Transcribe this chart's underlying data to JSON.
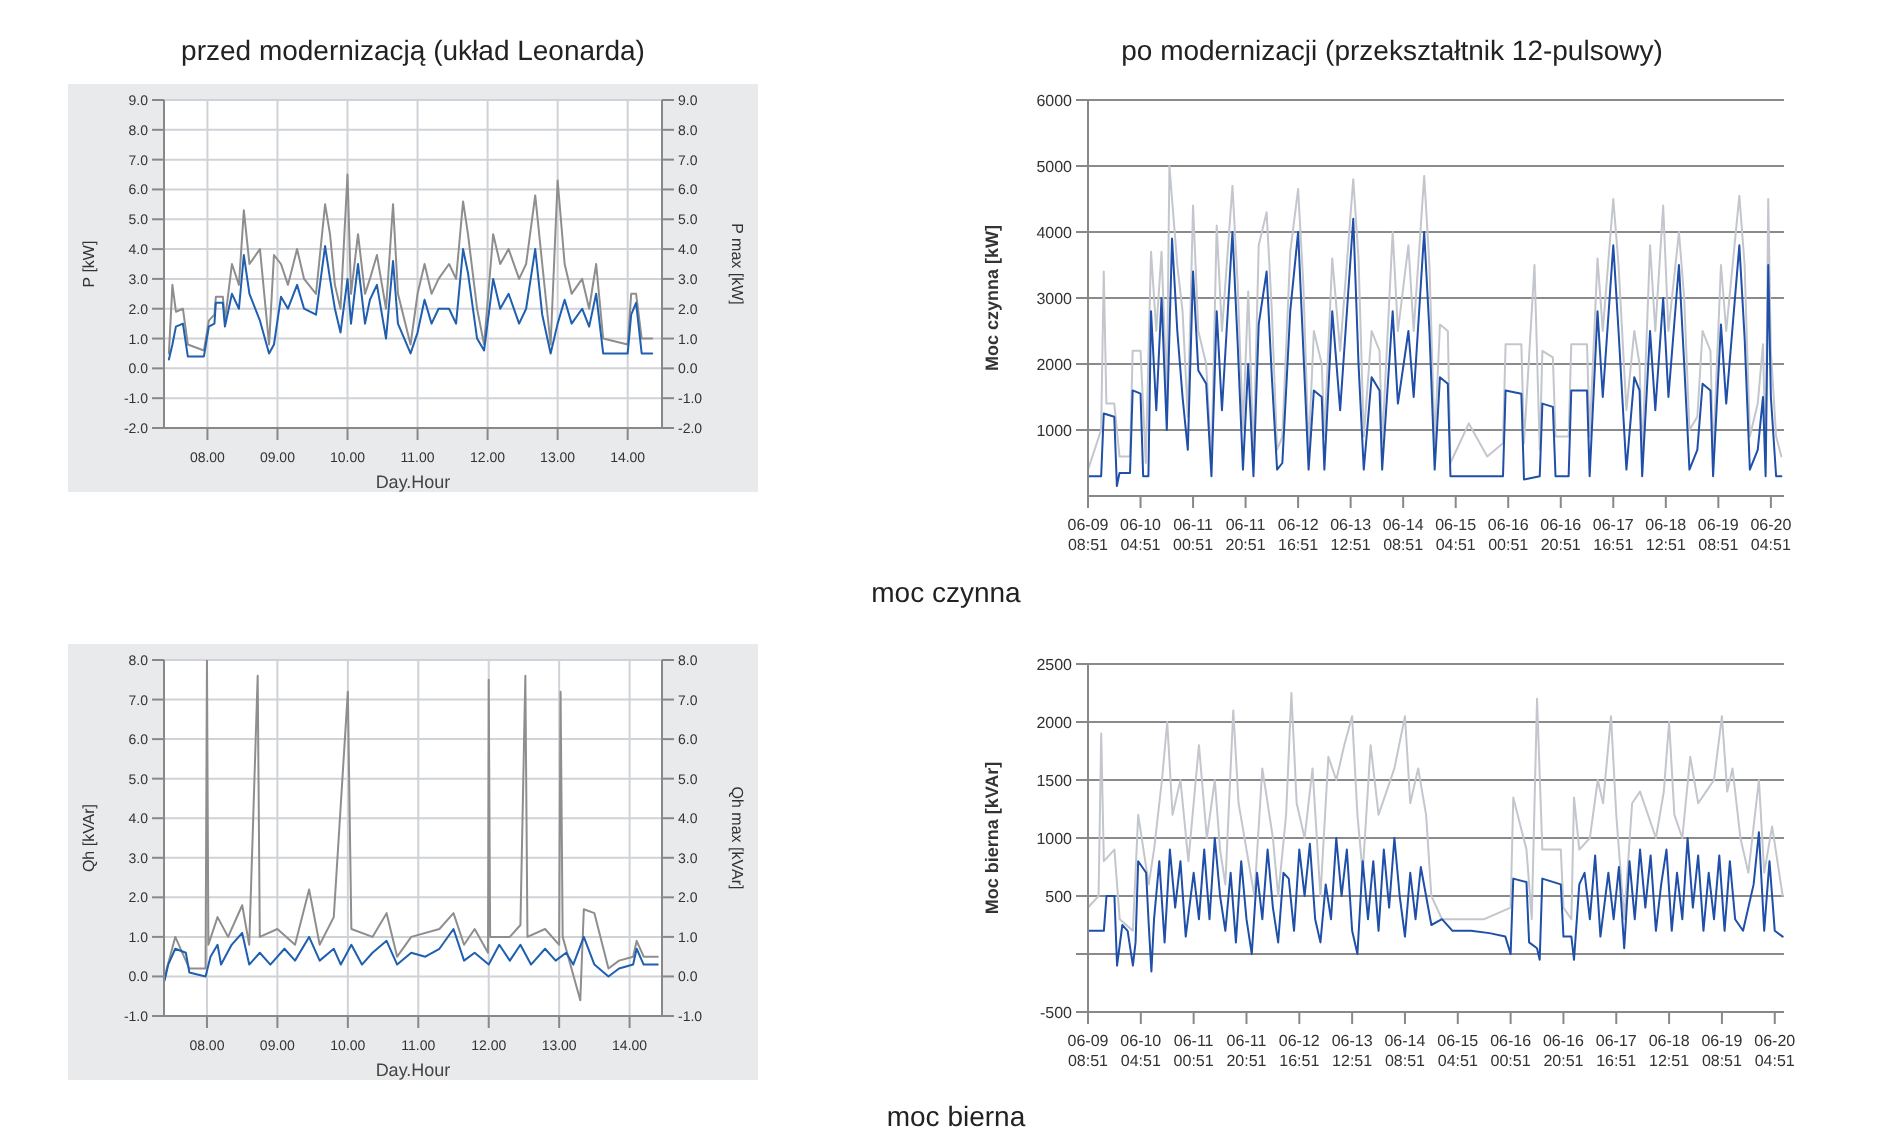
{
  "chart_data": [
    {
      "type": "line",
      "title": "przed modernizacją (układ Leonarda)",
      "xlabel": "Day.Hour",
      "ylabel": "P [kW]",
      "y2label": "P max [kW]",
      "annotations": [
        "moc czynna"
      ],
      "grid": true,
      "xlim": [
        7.38,
        14.49
      ],
      "xticks": [
        {
          "value": 8,
          "label": "08.00"
        },
        {
          "value": 9,
          "label": "09.00"
        },
        {
          "value": 10,
          "label": "10.00"
        },
        {
          "value": 11,
          "label": "11.00"
        },
        {
          "value": 12,
          "label": "12.00"
        },
        {
          "value": 13,
          "label": "13.00"
        },
        {
          "value": 14,
          "label": "14.00"
        }
      ],
      "ylim": [
        -2,
        9
      ],
      "yticks": [
        {
          "value": -2,
          "label": "-2.0"
        },
        {
          "value": -1,
          "label": "-1.0"
        },
        {
          "value": 0,
          "label": "0.0"
        },
        {
          "value": 1,
          "label": "1.0"
        },
        {
          "value": 2,
          "label": "2.0"
        },
        {
          "value": 3,
          "label": "3.0"
        },
        {
          "value": 4,
          "label": "4.0"
        },
        {
          "value": 5,
          "label": "5.0"
        },
        {
          "value": 6,
          "label": "6.0"
        },
        {
          "value": 7,
          "label": "7.0"
        },
        {
          "value": 8,
          "label": "8.0"
        },
        {
          "value": 9,
          "label": "9.0"
        }
      ],
      "y2lim": [
        -2,
        9
      ],
      "y2ticks": [
        {
          "value": -2,
          "label": "-2.0"
        },
        {
          "value": -1,
          "label": "-1.0"
        },
        {
          "value": 0,
          "label": "0.0"
        },
        {
          "value": 1,
          "label": "1.0"
        },
        {
          "value": 2,
          "label": "2.0"
        },
        {
          "value": 3,
          "label": "3.0"
        },
        {
          "value": 4,
          "label": "4.0"
        },
        {
          "value": 5,
          "label": "5.0"
        },
        {
          "value": 6,
          "label": "6.0"
        },
        {
          "value": 7,
          "label": "7.0"
        },
        {
          "value": 8,
          "label": "8.0"
        },
        {
          "value": 9,
          "label": "9.0"
        }
      ],
      "x": [
        7.45,
        7.5,
        7.55,
        7.65,
        7.72,
        7.95,
        8.02,
        8.1,
        8.12,
        8.22,
        8.25,
        8.35,
        8.45,
        8.52,
        8.6,
        8.75,
        8.88,
        8.95,
        9.05,
        9.15,
        9.28,
        9.38,
        9.55,
        9.68,
        9.75,
        9.82,
        9.9,
        10.0,
        10.05,
        10.15,
        10.25,
        10.32,
        10.42,
        10.55,
        10.65,
        10.72,
        10.9,
        11.0,
        11.1,
        11.2,
        11.3,
        11.45,
        11.55,
        11.65,
        11.72,
        11.85,
        11.95,
        12.08,
        12.18,
        12.3,
        12.45,
        12.55,
        12.68,
        12.78,
        12.9,
        13.0,
        13.1,
        13.2,
        13.35,
        13.45,
        13.55,
        13.65,
        14.0,
        14.05,
        14.12,
        14.2,
        14.35
      ],
      "series": [
        {
          "color": "#8e8e8e",
          "values": [
            0.5,
            2.8,
            1.9,
            2.0,
            0.8,
            0.6,
            1.6,
            1.8,
            2.4,
            2.4,
            1.6,
            3.5,
            2.8,
            5.3,
            3.5,
            4.0,
            0.8,
            3.8,
            3.5,
            2.8,
            4.0,
            3.0,
            2.5,
            5.5,
            4.5,
            2.8,
            2.0,
            6.5,
            2.5,
            4.5,
            2.5,
            3.0,
            3.8,
            2.0,
            5.5,
            2.5,
            0.8,
            2.5,
            3.5,
            2.5,
            3.0,
            3.5,
            3.0,
            5.6,
            4.5,
            2.0,
            0.8,
            4.5,
            3.5,
            4.0,
            3.0,
            3.5,
            5.8,
            3.5,
            0.8,
            6.3,
            3.5,
            2.5,
            3.0,
            2.0,
            3.5,
            1.0,
            0.8,
            2.5,
            2.5,
            1.0,
            1.0
          ]
        },
        {
          "color": "#1f5fb0",
          "values": [
            0.3,
            0.8,
            1.4,
            1.5,
            0.4,
            0.4,
            1.4,
            1.5,
            2.2,
            2.2,
            1.4,
            2.5,
            2.0,
            3.8,
            2.5,
            1.6,
            0.5,
            0.8,
            2.4,
            2.0,
            2.8,
            2.0,
            1.8,
            4.1,
            3.0,
            2.0,
            1.2,
            3.0,
            1.5,
            3.5,
            1.5,
            2.3,
            2.8,
            1.0,
            3.6,
            1.5,
            0.5,
            1.2,
            2.3,
            1.5,
            2.0,
            2.0,
            1.5,
            4.0,
            3.2,
            1.0,
            0.6,
            3.0,
            2.0,
            2.5,
            1.5,
            2.0,
            4.0,
            1.8,
            0.5,
            1.5,
            2.3,
            1.5,
            2.0,
            1.4,
            2.5,
            0.5,
            0.5,
            1.8,
            2.2,
            0.5,
            0.5
          ]
        }
      ]
    },
    {
      "type": "line",
      "title": "po modernizacji (przekształtnik 12-pulsowy)",
      "ylabel": "Moc czynna [kW]",
      "grid": "y",
      "xlim": [
        "--06-09T08:51",
        "--06-20T09:51"
      ],
      "xticks": [
        {
          "value": "--06-09T08:51",
          "label": "06-09 08:51"
        },
        {
          "value": "--06-10T04:51",
          "label": "06-10 04:51"
        },
        {
          "value": "--06-11T00:51",
          "label": "06-11 00:51"
        },
        {
          "value": "--06-11T20:51",
          "label": "06-11 20:51"
        },
        {
          "value": "--06-12T16:51",
          "label": "06-12 16:51"
        },
        {
          "value": "--06-13T12:51",
          "label": "06-13 12:51"
        },
        {
          "value": "--06-14T08:51",
          "label": "06-14 08:51"
        },
        {
          "value": "--06-15T04:51",
          "label": "06-15 04:51"
        },
        {
          "value": "--06-16T00:51",
          "label": "06-16 00:51"
        },
        {
          "value": "--06-16T20:51",
          "label": "06-16 20:51"
        },
        {
          "value": "--06-17T16:51",
          "label": "06-17 16:51"
        },
        {
          "value": "--06-18T12:51",
          "label": "06-18 12:51"
        },
        {
          "value": "--06-19T08:51",
          "label": "06-19 08:51"
        },
        {
          "value": "--06-20T04:51",
          "label": "06-20 04:51"
        }
      ],
      "ylim": [
        0,
        6000
      ],
      "yticks": [
        1000,
        2000,
        3000,
        4000,
        5000,
        6000
      ],
      "series": [
        {
          "color": "#c3c6cc",
          "x": [
            "--06-09T08:51",
            "--06-09T13:51",
            "--06-09T14:51",
            "--06-09T15:51",
            "--06-09T18:51",
            "--06-09T20:51",
            "--06-10T00:51",
            "--06-10T01:51",
            "--06-10T04:51",
            "--06-10T06:51",
            "--06-10T08:51",
            "--06-10T10:51",
            "--06-10T12:51",
            "--06-10T14:51",
            "--06-10T15:51",
            "--06-10T18:51",
            "--06-10T20:51",
            "--06-10T22:51",
            "--06-11T00:51",
            "--06-11T02:51",
            "--06-11T05:51",
            "--06-11T07:51",
            "--06-11T09:51",
            "--06-11T11:51",
            "--06-11T15:51",
            "--06-11T17:51",
            "--06-11T19:51",
            "--06-11T21:51",
            "--06-11T23:51",
            "--06-12T01:51",
            "--06-12T04:51",
            "--06-12T06:51",
            "--06-12T08:51",
            "--06-12T10:51",
            "--06-12T13:51",
            "--06-12T16:51",
            "--06-12T18:51",
            "--06-12T20:51",
            "--06-12T22:51",
            "--06-13T01:51",
            "--06-13T02:51",
            "--06-13T05:51",
            "--06-13T08:51",
            "--06-13T13:51",
            "--06-13T15:51",
            "--06-13T17:51",
            "--06-13T20:51",
            "--06-13T23:51",
            "--06-14T00:51",
            "--06-14T04:51",
            "--06-14T06:51",
            "--06-14T10:51",
            "--06-14T12:51",
            "--06-14T16:51",
            "--06-14T18:51",
            "--06-14T20:51",
            "--06-14T22:51",
            "--06-15T01:51",
            "--06-15T02:51",
            "--06-15T09:51",
            "--06-15T16:51",
            "--06-15T22:51",
            "--06-15T23:51",
            "--06-16T05:51",
            "--06-16T06:51",
            "--06-16T10:51",
            "--06-16T12:51",
            "--06-16T13:51",
            "--06-16T17:51",
            "--06-16T18:51",
            "--06-16T23:51",
            "--06-17T00:51",
            "--06-17T06:51",
            "--06-17T07:51",
            "--06-17T10:51",
            "--06-17T12:51",
            "--06-17T16:51",
            "--06-17T18:51",
            "--06-17T21:51",
            "--06-18T00:51",
            "--06-18T02:51",
            "--06-18T03:51",
            "--06-18T06:51",
            "--06-18T08:51",
            "--06-18T11:51",
            "--06-18T13:51",
            "--06-18T17:51",
            "--06-18T19:51",
            "--06-18T21:51",
            "--06-19T00:51",
            "--06-19T02:51",
            "--06-19T05:51",
            "--06-19T06:51",
            "--06-19T09:51",
            "--06-19T11:51",
            "--06-19T16:51",
            "--06-19T18:51",
            "--06-19T20:51",
            "--06-19T23:51",
            "--06-20T01:51",
            "--06-20T02:51",
            "--06-20T03:51",
            "--06-20T04:51",
            "--06-20T06:51",
            "--06-20T08:51"
          ],
          "values": [
            400,
            1000,
            3400,
            1400,
            1400,
            600,
            600,
            2200,
            2200,
            500,
            3700,
            2500,
            3700,
            1500,
            5000,
            3500,
            2800,
            1200,
            4400,
            2500,
            2000,
            500,
            4100,
            2500,
            4700,
            3200,
            1000,
            3100,
            600,
            3800,
            4300,
            2800,
            700,
            900,
            3700,
            4650,
            3200,
            700,
            2500,
            2000,
            900,
            3600,
            2200,
            4800,
            3600,
            900,
            2500,
            2200,
            800,
            4000,
            2500,
            3800,
            2500,
            4850,
            3500,
            800,
            2600,
            2500,
            500,
            1100,
            600,
            800,
            2300,
            2300,
            800,
            3500,
            700,
            2200,
            2100,
            900,
            900,
            2300,
            2300,
            900,
            3600,
            2500,
            4500,
            3500,
            1300,
            2500,
            2000,
            600,
            3800,
            2500,
            4400,
            2500,
            4000,
            3000,
            1000,
            1200,
            2500,
            2200,
            600,
            3500,
            2500,
            4550,
            3500,
            900,
            1400,
            2300,
            600,
            4500,
            2200,
            900,
            600
          ]
        },
        {
          "color": "#1f4fa8",
          "x": [
            "--06-09T08:51",
            "--06-09T13:51",
            "--06-09T14:51",
            "--06-09T18:51",
            "--06-09T19:51",
            "--06-09T20:51",
            "--06-10T00:51",
            "--06-10T01:51",
            "--06-10T04:51",
            "--06-10T05:51",
            "--06-10T07:51",
            "--06-10T08:51",
            "--06-10T10:51",
            "--06-10T12:51",
            "--06-10T14:51",
            "--06-10T16:51",
            "--06-10T18:51",
            "--06-10T20:51",
            "--06-10T22:51",
            "--06-11T00:51",
            "--06-11T02:51",
            "--06-11T05:51",
            "--06-11T07:51",
            "--06-11T09:51",
            "--06-11T11:51",
            "--06-11T15:51",
            "--06-11T17:51",
            "--06-11T19:51",
            "--06-11T21:51",
            "--06-11T23:51",
            "--06-12T01:51",
            "--06-12T04:51",
            "--06-12T06:51",
            "--06-12T08:51",
            "--06-12T10:51",
            "--06-12T13:51",
            "--06-12T16:51",
            "--06-12T18:51",
            "--06-12T20:51",
            "--06-12T22:51",
            "--06-13T01:51",
            "--06-13T02:51",
            "--06-13T05:51",
            "--06-13T08:51",
            "--06-13T13:51",
            "--06-13T15:51",
            "--06-13T17:51",
            "--06-13T20:51",
            "--06-13T23:51",
            "--06-14T00:51",
            "--06-14T04:51",
            "--06-14T06:51",
            "--06-14T10:51",
            "--06-14T12:51",
            "--06-14T16:51",
            "--06-14T18:51",
            "--06-14T20:51",
            "--06-14T22:51",
            "--06-15T01:51",
            "--06-15T02:51",
            "--06-15T22:51",
            "--06-15T23:51",
            "--06-16T05:51",
            "--06-16T06:51",
            "--06-16T12:51",
            "--06-16T13:51",
            "--06-16T17:51",
            "--06-16T18:51",
            "--06-16T23:51",
            "--06-17T00:51",
            "--06-17T06:51",
            "--06-17T07:51",
            "--06-17T10:51",
            "--06-17T12:51",
            "--06-17T16:51",
            "--06-17T18:51",
            "--06-17T21:51",
            "--06-18T00:51",
            "--06-18T02:51",
            "--06-18T03:51",
            "--06-18T06:51",
            "--06-18T08:51",
            "--06-18T11:51",
            "--06-18T13:51",
            "--06-18T17:51",
            "--06-18T19:51",
            "--06-18T21:51",
            "--06-19T00:51",
            "--06-19T02:51",
            "--06-19T05:51",
            "--06-19T06:51",
            "--06-19T09:51",
            "--06-19T11:51",
            "--06-19T16:51",
            "--06-19T18:51",
            "--06-19T20:51",
            "--06-19T23:51",
            "--06-20T01:51",
            "--06-20T02:51",
            "--06-20T03:51",
            "--06-20T04:51",
            "--06-20T06:51",
            "--06-20T08:51"
          ],
          "values": [
            300,
            300,
            1250,
            1200,
            150,
            350,
            350,
            1600,
            1550,
            300,
            300,
            2800,
            1300,
            3000,
            1000,
            3900,
            2500,
            1500,
            700,
            3400,
            1900,
            1700,
            300,
            2800,
            1300,
            4000,
            2300,
            400,
            2000,
            300,
            2600,
            3400,
            1800,
            400,
            500,
            2800,
            4000,
            2200,
            400,
            1600,
            1500,
            400,
            2800,
            1300,
            4200,
            2000,
            400,
            1800,
            1600,
            400,
            2800,
            1400,
            2500,
            1500,
            4000,
            2500,
            400,
            1800,
            1700,
            300,
            300,
            1600,
            1550,
            250,
            300,
            1400,
            1350,
            300,
            300,
            1600,
            1600,
            300,
            2800,
            1500,
            3800,
            2500,
            400,
            1800,
            1600,
            300,
            2500,
            1300,
            3000,
            1500,
            3500,
            2000,
            400,
            700,
            1700,
            1600,
            300,
            2600,
            1400,
            3800,
            2400,
            400,
            700,
            1500,
            300,
            3500,
            1500,
            300,
            300
          ]
        }
      ]
    },
    {
      "type": "line",
      "xlabel": "Day.Hour",
      "ylabel": "Qh [kVAr]",
      "y2label": "Qh max [kVAr]",
      "annotations": [
        "moc bierna"
      ],
      "grid": true,
      "xlim": [
        7.39,
        14.46
      ],
      "xticks": [
        {
          "value": 8,
          "label": "08.00"
        },
        {
          "value": 9,
          "label": "09.00"
        },
        {
          "value": 10,
          "label": "10.00"
        },
        {
          "value": 11,
          "label": "11.00"
        },
        {
          "value": 12,
          "label": "12.00"
        },
        {
          "value": 13,
          "label": "13.00"
        },
        {
          "value": 14,
          "label": "14.00"
        }
      ],
      "ylim": [
        -1,
        8
      ],
      "yticks": [
        {
          "value": -1,
          "label": "-1.0"
        },
        {
          "value": 0,
          "label": "0.0"
        },
        {
          "value": 1,
          "label": "1.0"
        },
        {
          "value": 2,
          "label": "2.0"
        },
        {
          "value": 3,
          "label": "3.0"
        },
        {
          "value": 4,
          "label": "4.0"
        },
        {
          "value": 5,
          "label": "5.0"
        },
        {
          "value": 6,
          "label": "6.0"
        },
        {
          "value": 7,
          "label": "7.0"
        },
        {
          "value": 8,
          "label": "8.0"
        }
      ],
      "y2lim": [
        -1,
        8
      ],
      "y2ticks": [
        {
          "value": -1,
          "label": "-1.0"
        },
        {
          "value": 0,
          "label": "0.0"
        },
        {
          "value": 1,
          "label": "1.0"
        },
        {
          "value": 2,
          "label": "2.0"
        },
        {
          "value": 3,
          "label": "3.0"
        },
        {
          "value": 4,
          "label": "4.0"
        },
        {
          "value": 5,
          "label": "5.0"
        },
        {
          "value": 6,
          "label": "6.0"
        },
        {
          "value": 7,
          "label": "7.0"
        },
        {
          "value": 8,
          "label": "8.0"
        }
      ],
      "series": [
        {
          "color": "#8e8e8e",
          "x": [
            7.4,
            7.55,
            7.75,
            7.98,
            8.0,
            8.02,
            8.15,
            8.3,
            8.5,
            8.6,
            8.72,
            8.75,
            9.0,
            9.25,
            9.45,
            9.6,
            9.8,
            10.0,
            10.05,
            10.35,
            10.55,
            10.7,
            10.9,
            11.3,
            11.5,
            11.65,
            11.8,
            11.99,
            12.0,
            12.02,
            12.3,
            12.45,
            12.52,
            12.55,
            12.8,
            13.0,
            13.02,
            13.05,
            13.3,
            13.35,
            13.5,
            13.7,
            13.85,
            14.05,
            14.1,
            14.2,
            14.4
          ],
          "values": [
            0.0,
            1.0,
            0.2,
            0.2,
            8.0,
            0.8,
            1.5,
            1.0,
            1.8,
            0.8,
            7.6,
            1.0,
            1.2,
            0.8,
            2.2,
            0.8,
            1.5,
            7.2,
            1.2,
            1.0,
            1.6,
            0.5,
            1.0,
            1.2,
            1.6,
            0.8,
            1.2,
            0.6,
            7.5,
            1.0,
            1.0,
            1.3,
            7.6,
            1.0,
            1.2,
            0.8,
            7.2,
            1.0,
            -0.6,
            1.7,
            1.6,
            0.2,
            0.4,
            0.5,
            0.9,
            0.5,
            0.5
          ]
        },
        {
          "color": "#1f5fb0",
          "x": [
            7.4,
            7.45,
            7.55,
            7.7,
            7.75,
            7.98,
            8.05,
            8.15,
            8.2,
            8.35,
            8.5,
            8.6,
            8.75,
            8.9,
            9.1,
            9.25,
            9.45,
            9.6,
            9.8,
            9.9,
            10.05,
            10.2,
            10.35,
            10.55,
            10.7,
            10.9,
            11.1,
            11.3,
            11.5,
            11.65,
            11.8,
            12.0,
            12.15,
            12.3,
            12.45,
            12.6,
            12.8,
            12.95,
            13.1,
            13.2,
            13.35,
            13.5,
            13.7,
            13.85,
            14.05,
            14.1,
            14.2,
            14.4
          ],
          "values": [
            -0.1,
            0.3,
            0.7,
            0.6,
            0.1,
            0.0,
            0.5,
            0.8,
            0.3,
            0.8,
            1.1,
            0.3,
            0.6,
            0.3,
            0.7,
            0.4,
            1.0,
            0.4,
            0.7,
            0.3,
            0.8,
            0.3,
            0.6,
            0.9,
            0.3,
            0.6,
            0.5,
            0.7,
            1.2,
            0.4,
            0.6,
            0.3,
            0.8,
            0.4,
            0.8,
            0.3,
            0.7,
            0.4,
            0.6,
            0.3,
            1.0,
            0.3,
            0.0,
            0.2,
            0.3,
            0.7,
            0.3,
            0.3
          ]
        }
      ]
    },
    {
      "type": "line",
      "ylabel": "Moc bierna [kVAr]",
      "grid": "y",
      "xlim": [
        "--06-09T08:51",
        "--06-20T08:21"
      ],
      "xticks": [
        {
          "value": "--06-09T08:51",
          "label": "06-09 08:51"
        },
        {
          "value": "--06-10T04:51",
          "label": "06-10 04:51"
        },
        {
          "value": "--06-11T00:51",
          "label": "06-11 00:51"
        },
        {
          "value": "--06-11T20:51",
          "label": "06-11 20:51"
        },
        {
          "value": "--06-12T16:51",
          "label": "06-12 16:51"
        },
        {
          "value": "--06-13T12:51",
          "label": "06-13 12:51"
        },
        {
          "value": "--06-14T08:51",
          "label": "06-14 08:51"
        },
        {
          "value": "--06-15T04:51",
          "label": "06-15 04:51"
        },
        {
          "value": "--06-16T00:51",
          "label": "06-16 00:51"
        },
        {
          "value": "--06-16T20:51",
          "label": "06-16 20:51"
        },
        {
          "value": "--06-17T16:51",
          "label": "06-17 16:51"
        },
        {
          "value": "--06-18T12:51",
          "label": "06-18 12:51"
        },
        {
          "value": "--06-19T08:51",
          "label": "06-19 08:51"
        },
        {
          "value": "--06-20T04:51",
          "label": "06-20 04:51"
        }
      ],
      "ylim": [
        -500,
        2500
      ],
      "yticks": [
        -500,
        {
          "value": 0,
          "label": null
        },
        500,
        1000,
        1500,
        2000,
        2500
      ],
      "series": [
        {
          "color": "#c3c6cc",
          "x": [
            "--06-09T08:51",
            "--06-09T12:51",
            "--06-09T13:51",
            "--06-09T14:51",
            "--06-09T18:51",
            "--06-09T20:51",
            "--06-10T01:51",
            "--06-10T03:51",
            "--06-10T07:51",
            "--06-10T09:51",
            "--06-10T12:51",
            "--06-10T14:51",
            "--06-10T16:51",
            "--06-10T19:51",
            "--06-10T22:51",
            "--06-11T02:51",
            "--06-11T05:51",
            "--06-11T08:51",
            "--06-11T10:51",
            "--06-11T12:51",
            "--06-11T15:51",
            "--06-11T17:51",
            "--06-11T20:51",
            "--06-11T23:51",
            "--06-12T02:51",
            "--06-12T06:51",
            "--06-12T08:51",
            "--06-12T11:51",
            "--06-12T13:51",
            "--06-12T15:51",
            "--06-12T18:51",
            "--06-12T21:51",
            "--06-13T00:51",
            "--06-13T03:51",
            "--06-13T06:51",
            "--06-13T09:51",
            "--06-13T12:51",
            "--06-13T14:51",
            "--06-13T16:51",
            "--06-13T19:51",
            "--06-13T22:51",
            "--06-14T01:51",
            "--06-14T04:51",
            "--06-14T08:51",
            "--06-14T10:51",
            "--06-14T13:51",
            "--06-14T16:51",
            "--06-14T18:51",
            "--06-14T22:51",
            "--06-15T02:51",
            "--06-15T14:51",
            "--06-16T00:51",
            "--06-16T01:51",
            "--06-16T06:51",
            "--06-16T08:51",
            "--06-16T10:51",
            "--06-16T12:51",
            "--06-16T19:51",
            "--06-16T20:51",
            "--06-16T23:51",
            "--06-17T00:51",
            "--06-17T02:51",
            "--06-17T06:51",
            "--06-17T09:51",
            "--06-17T11:51",
            "--06-17T14:51",
            "--06-17T16:51",
            "--06-17T19:51",
            "--06-17T22:51",
            "--06-18T01:51",
            "--06-18T04:51",
            "--06-18T07:51",
            "--06-18T10:51",
            "--06-18T12:51",
            "--06-18T14:51",
            "--06-18T17:51",
            "--06-18T20:51",
            "--06-18T23:51",
            "--06-19T02:51",
            "--06-19T05:51",
            "--06-19T08:51",
            "--06-19T10:51",
            "--06-19T12:51",
            "--06-19T15:51",
            "--06-19T18:51",
            "--06-19T22:51",
            "--06-20T00:51",
            "--06-20T03:51",
            "--06-20T07:51"
          ],
          "values": [
            400,
            500,
            1900,
            800,
            900,
            300,
            200,
            1200,
            600,
            900,
            1500,
            2000,
            1200,
            1500,
            800,
            1800,
            1000,
            1500,
            900,
            600,
            2100,
            1300,
            900,
            500,
            1600,
            1000,
            500,
            1200,
            2250,
            1300,
            1000,
            1600,
            500,
            1700,
            1500,
            1800,
            2050,
            1200,
            700,
            1800,
            1200,
            1400,
            1600,
            2050,
            1300,
            1600,
            1200,
            500,
            300,
            300,
            300,
            400,
            1350,
            900,
            300,
            2200,
            900,
            900,
            400,
            300,
            1350,
            900,
            1000,
            1500,
            1300,
            2050,
            1200,
            300,
            1300,
            1400,
            1200,
            1000,
            1400,
            2000,
            1200,
            1000,
            1700,
            1300,
            1400,
            1500,
            2050,
            1400,
            1600,
            1000,
            700,
            1500,
            700,
            1100,
            500
          ]
        },
        {
          "color": "#1f4fa8",
          "x": [
            "--06-09T08:51",
            "--06-09T14:51",
            "--06-09T15:51",
            "--06-09T18:51",
            "--06-09T19:51",
            "--06-09T21:51",
            "--06-09T23:51",
            "--06-10T01:51",
            "--06-10T02:51",
            "--06-10T03:51",
            "--06-10T06:51",
            "--06-10T07:51",
            "--06-10T08:51",
            "--06-10T09:51",
            "--06-10T11:51",
            "--06-10T13:51",
            "--06-10T15:51",
            "--06-10T17:51",
            "--06-10T19:51",
            "--06-10T21:51",
            "--06-11T00:51",
            "--06-11T02:51",
            "--06-11T04:51",
            "--06-11T06:51",
            "--06-11T08:51",
            "--06-11T10:51",
            "--06-11T12:51",
            "--06-11T14:51",
            "--06-11T16:51",
            "--06-11T18:51",
            "--06-11T20:51",
            "--06-11T22:51",
            "--06-12T00:51",
            "--06-12T02:51",
            "--06-12T04:51",
            "--06-12T06:51",
            "--06-12T08:51",
            "--06-12T10:51",
            "--06-12T12:51",
            "--06-12T14:51",
            "--06-12T16:51",
            "--06-12T18:51",
            "--06-12T20:51",
            "--06-12T22:51",
            "--06-13T00:51",
            "--06-13T02:51",
            "--06-13T04:51",
            "--06-13T06:51",
            "--06-13T08:51",
            "--06-13T10:51",
            "--06-13T12:51",
            "--06-13T14:51",
            "--06-13T16:51",
            "--06-13T18:51",
            "--06-13T20:51",
            "--06-13T22:51",
            "--06-14T00:51",
            "--06-14T02:51",
            "--06-14T04:51",
            "--06-14T06:51",
            "--06-14T08:51",
            "--06-14T10:51",
            "--06-14T12:51",
            "--06-14T14:51",
            "--06-14T18:51",
            "--06-14T22:51",
            "--06-15T02:51",
            "--06-15T09:51",
            "--06-15T16:51",
            "--06-15T22:51",
            "--06-16T00:51",
            "--06-16T01:51",
            "--06-16T06:51",
            "--06-16T07:51",
            "--06-16T10:51",
            "--06-16T11:51",
            "--06-16T12:51",
            "--06-16T19:51",
            "--06-16T20:51",
            "--06-16T23:51",
            "--06-17T00:51",
            "--06-17T02:51",
            "--06-17T04:51",
            "--06-17T06:51",
            "--06-17T08:51",
            "--06-17T10:51",
            "--06-17T13:51",
            "--06-17T15:51",
            "--06-17T17:51",
            "--06-17T19:51",
            "--06-17T21:51",
            "--06-17T23:51",
            "--06-18T01:51",
            "--06-18T03:51",
            "--06-18T05:51",
            "--06-18T07:51",
            "--06-18T09:51",
            "--06-18T11:51",
            "--06-18T13:51",
            "--06-18T15:51",
            "--06-18T17:51",
            "--06-18T19:51",
            "--06-18T21:51",
            "--06-18T23:51",
            "--06-19T01:51",
            "--06-19T03:51",
            "--06-19T05:51",
            "--06-19T07:51",
            "--06-19T09:51",
            "--06-19T11:51",
            "--06-19T13:51",
            "--06-19T16:51",
            "--06-19T20:51",
            "--06-19T22:51",
            "--06-20T00:51",
            "--06-20T02:51",
            "--06-20T04:51",
            "--06-20T07:51"
          ],
          "values": [
            200,
            200,
            500,
            500,
            -100,
            250,
            200,
            -100,
            100,
            800,
            700,
            250,
            -150,
            300,
            800,
            100,
            900,
            400,
            800,
            150,
            700,
            300,
            900,
            300,
            1000,
            500,
            200,
            700,
            100,
            800,
            300,
            0,
            700,
            300,
            900,
            400,
            100,
            700,
            650,
            200,
            900,
            500,
            950,
            300,
            100,
            600,
            300,
            1000,
            500,
            900,
            200,
            0,
            800,
            300,
            800,
            200,
            900,
            400,
            1000,
            500,
            150,
            700,
            300,
            750,
            250,
            300,
            200,
            200,
            180,
            150,
            0,
            650,
            620,
            100,
            50,
            -50,
            650,
            600,
            150,
            150,
            -50,
            600,
            700,
            300,
            850,
            150,
            700,
            300,
            750,
            50,
            800,
            300,
            900,
            400,
            850,
            200,
            600,
            900,
            200,
            700,
            300,
            1000,
            400,
            850,
            200,
            700,
            300,
            850,
            200,
            800,
            300,
            200,
            600,
            1050,
            200,
            800,
            200,
            150
          ]
        }
      ]
    }
  ]
}
